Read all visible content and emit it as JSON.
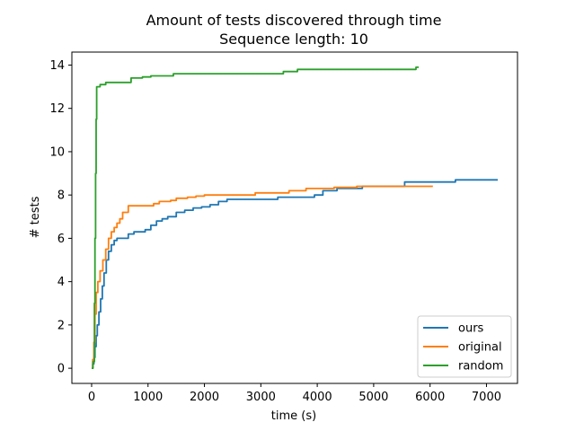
{
  "chart_data": {
    "type": "line",
    "title": "Amount of tests discovered through time",
    "subtitle": "Sequence length: 10",
    "xlabel": "time (s)",
    "ylabel": "# tests",
    "xlim": [
      -350,
      7550
    ],
    "ylim": [
      -0.7,
      14.6
    ],
    "xticks": [
      0,
      1000,
      2000,
      3000,
      4000,
      5000,
      6000,
      7000
    ],
    "yticks": [
      0,
      2,
      4,
      6,
      8,
      10,
      12,
      14
    ],
    "legend_position": "lower-right",
    "grid": false,
    "series": [
      {
        "name": "ours",
        "color": "#1f77b4",
        "points": [
          [
            0,
            0
          ],
          [
            20,
            0.2
          ],
          [
            40,
            0.5
          ],
          [
            60,
            1.0
          ],
          [
            80,
            1.5
          ],
          [
            100,
            2.0
          ],
          [
            130,
            2.6
          ],
          [
            160,
            3.2
          ],
          [
            190,
            3.8
          ],
          [
            220,
            4.4
          ],
          [
            260,
            5.0
          ],
          [
            300,
            5.4
          ],
          [
            350,
            5.7
          ],
          [
            400,
            5.9
          ],
          [
            450,
            6.0
          ],
          [
            550,
            6.0
          ],
          [
            650,
            6.2
          ],
          [
            750,
            6.3
          ],
          [
            850,
            6.3
          ],
          [
            950,
            6.4
          ],
          [
            1050,
            6.6
          ],
          [
            1150,
            6.8
          ],
          [
            1250,
            6.9
          ],
          [
            1350,
            7.0
          ],
          [
            1500,
            7.2
          ],
          [
            1650,
            7.3
          ],
          [
            1800,
            7.4
          ],
          [
            1950,
            7.45
          ],
          [
            2100,
            7.55
          ],
          [
            2250,
            7.7
          ],
          [
            2400,
            7.8
          ],
          [
            2700,
            7.8
          ],
          [
            3000,
            7.8
          ],
          [
            3300,
            7.9
          ],
          [
            3700,
            7.9
          ],
          [
            3950,
            8.0
          ],
          [
            4100,
            8.2
          ],
          [
            4350,
            8.3
          ],
          [
            4800,
            8.4
          ],
          [
            5200,
            8.4
          ],
          [
            5550,
            8.6
          ],
          [
            6000,
            8.6
          ],
          [
            6450,
            8.7
          ],
          [
            7200,
            8.7
          ]
        ]
      },
      {
        "name": "original",
        "color": "#ff7f0e",
        "points": [
          [
            0,
            0
          ],
          [
            20,
            0.4
          ],
          [
            40,
            1.2
          ],
          [
            60,
            2.5
          ],
          [
            80,
            3.5
          ],
          [
            110,
            4.0
          ],
          [
            150,
            4.5
          ],
          [
            200,
            5.0
          ],
          [
            250,
            5.5
          ],
          [
            300,
            6.0
          ],
          [
            350,
            6.3
          ],
          [
            400,
            6.5
          ],
          [
            450,
            6.7
          ],
          [
            500,
            6.9
          ],
          [
            550,
            7.2
          ],
          [
            650,
            7.5
          ],
          [
            900,
            7.5
          ],
          [
            1100,
            7.6
          ],
          [
            1200,
            7.7
          ],
          [
            1400,
            7.75
          ],
          [
            1500,
            7.85
          ],
          [
            1700,
            7.9
          ],
          [
            1850,
            7.95
          ],
          [
            2000,
            8.0
          ],
          [
            2400,
            8.0
          ],
          [
            2800,
            8.0
          ],
          [
            2900,
            8.1
          ],
          [
            3500,
            8.2
          ],
          [
            3800,
            8.3
          ],
          [
            4300,
            8.35
          ],
          [
            4700,
            8.4
          ],
          [
            5200,
            8.4
          ],
          [
            6050,
            8.4
          ]
        ]
      },
      {
        "name": "random",
        "color": "#2ca02c",
        "points": [
          [
            0,
            0
          ],
          [
            25,
            0.3
          ],
          [
            50,
            3.0
          ],
          [
            60,
            6.0
          ],
          [
            70,
            9.0
          ],
          [
            80,
            11.5
          ],
          [
            90,
            13.0
          ],
          [
            150,
            13.1
          ],
          [
            250,
            13.2
          ],
          [
            400,
            13.2
          ],
          [
            600,
            13.2
          ],
          [
            700,
            13.4
          ],
          [
            900,
            13.45
          ],
          [
            1050,
            13.5
          ],
          [
            1450,
            13.6
          ],
          [
            2000,
            13.6
          ],
          [
            2800,
            13.6
          ],
          [
            3400,
            13.7
          ],
          [
            3650,
            13.8
          ],
          [
            5000,
            13.8
          ],
          [
            5700,
            13.8
          ],
          [
            5750,
            13.9
          ],
          [
            5800,
            13.9
          ]
        ]
      }
    ]
  }
}
